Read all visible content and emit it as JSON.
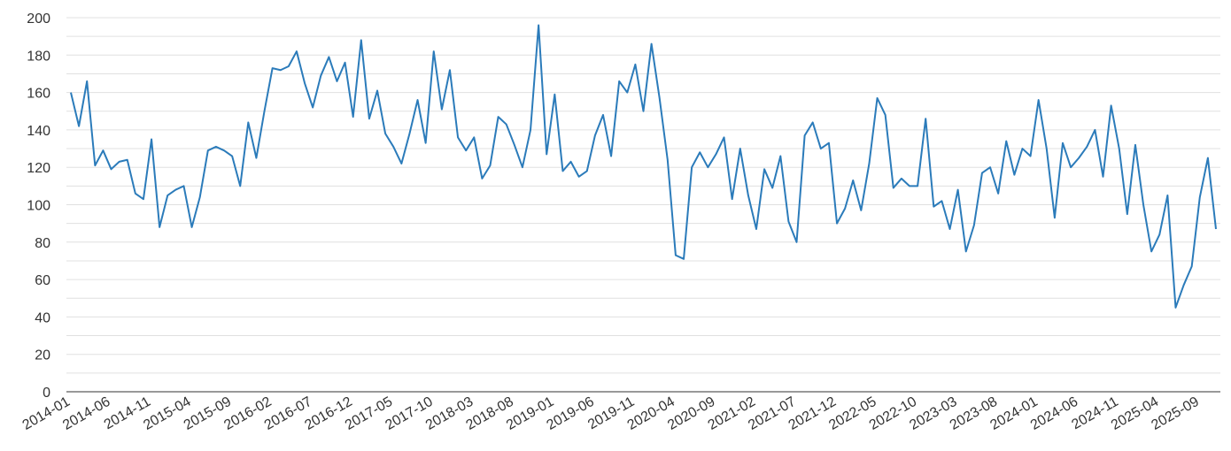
{
  "chart_data": {
    "type": "line",
    "title": "",
    "xlabel": "",
    "ylabel": "",
    "ylim": [
      0,
      200
    ],
    "yticks": [
      0,
      20,
      40,
      60,
      80,
      100,
      120,
      140,
      160,
      180,
      200
    ],
    "grid": true,
    "line_color": "#2b7bba",
    "x_tick_labels": [
      "2014-01",
      "2014-06",
      "2014-11",
      "2015-04",
      "2015-09",
      "2016-02",
      "2016-07",
      "2016-12",
      "2017-05",
      "2017-10",
      "2018-03",
      "2018-08",
      "2019-01",
      "2019-06",
      "2019-11",
      "2020-04",
      "2020-09",
      "2021-02",
      "2021-07",
      "2021-12",
      "2022-05",
      "2022-10",
      "2023-03",
      "2023-08",
      "2024-01",
      "2024-06",
      "2024-11",
      "2025-04",
      "2025-09"
    ],
    "x_start": "2014-01",
    "x_end": "2025-10",
    "series": [
      {
        "values": [
          160,
          142,
          166,
          121,
          129,
          119,
          123,
          124,
          106,
          103,
          135,
          88,
          105,
          108,
          110,
          88,
          104,
          129,
          131,
          129,
          126,
          110,
          144,
          125,
          150,
          173,
          172,
          174,
          182,
          165,
          152,
          169,
          179,
          166,
          176,
          147,
          188,
          146,
          161,
          138,
          131,
          122,
          138,
          156,
          133,
          182,
          151,
          172,
          136,
          129,
          136,
          114,
          121,
          147,
          143,
          132,
          120,
          140,
          196,
          127,
          159,
          118,
          123,
          115,
          118,
          137,
          148,
          126,
          166,
          160,
          175,
          150,
          186,
          157,
          124,
          73,
          71,
          120,
          128,
          120,
          127,
          136,
          103,
          130,
          105,
          87,
          119,
          109,
          126,
          91,
          80,
          137,
          144,
          130,
          133,
          90,
          98,
          113,
          97,
          122,
          157,
          148,
          109,
          114,
          110,
          110,
          146,
          99,
          102,
          87,
          108,
          75,
          89,
          117,
          120,
          106,
          134,
          116,
          130,
          126,
          156,
          130,
          93,
          133,
          120,
          125,
          131,
          140,
          115,
          153,
          130,
          95,
          132,
          100,
          75,
          84,
          105,
          45,
          57,
          67,
          104,
          125,
          87
        ]
      }
    ]
  }
}
